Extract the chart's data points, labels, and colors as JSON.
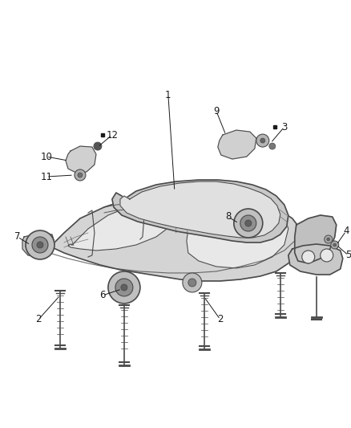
{
  "bg_color": "#ffffff",
  "line_color": "#4a4a4a",
  "fill_light": "#d8d8d8",
  "fill_medium": "#c0c0c0",
  "fill_dark": "#a8a8a8",
  "fill_white": "#f0f0f0",
  "label_color": "#1a1a1a",
  "label_fontsize": 8.5,
  "figure_width": 4.38,
  "figure_height": 5.33,
  "dpi": 100
}
